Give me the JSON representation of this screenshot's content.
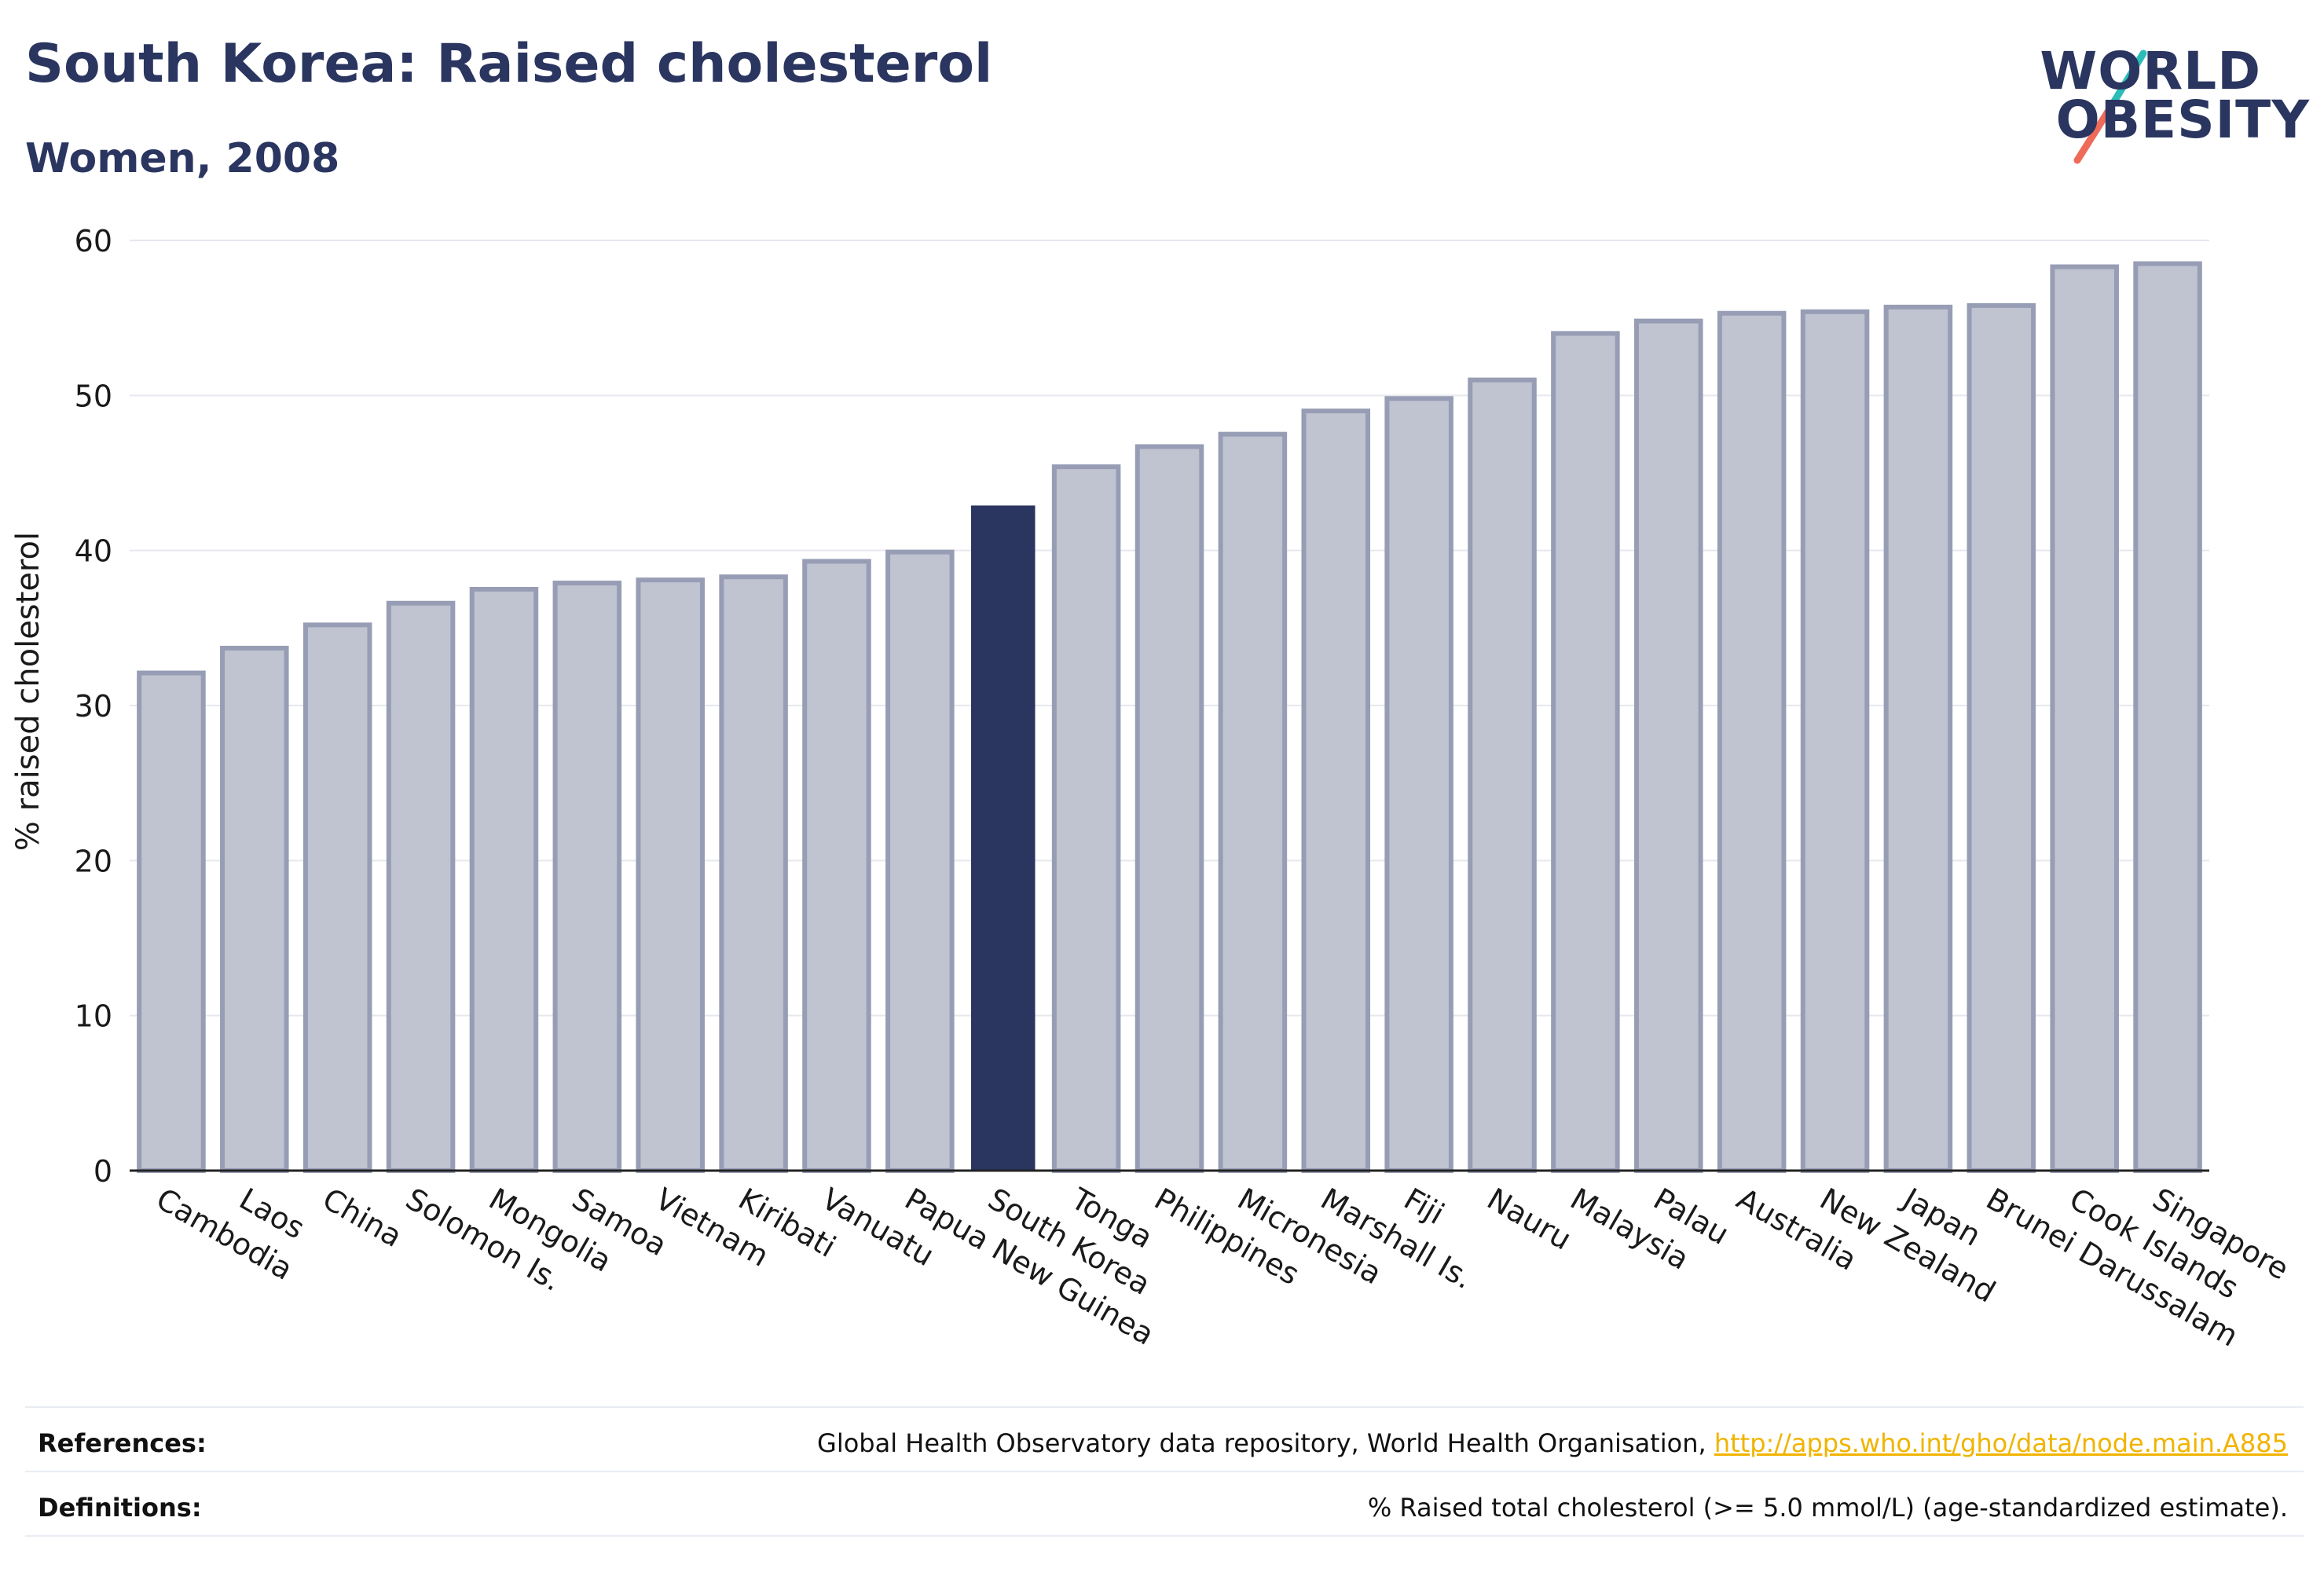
{
  "header": {
    "title": "South Korea: Raised cholesterol",
    "subtitle": "Women, 2008"
  },
  "logo": {
    "line1": "WORLD",
    "line2": "OBESITY",
    "accent_teal": "#2bbdb8",
    "accent_coral": "#ee6b5a"
  },
  "colors": {
    "bar_default": "#c0c3d0",
    "bar_default_border": "#979db4",
    "bar_highlight": "#2a3560",
    "grid": "#e6e8ee",
    "axis": "#222222"
  },
  "chart_data": {
    "type": "bar",
    "title": "South Korea: Raised cholesterol",
    "subtitle": "Women, 2008",
    "xlabel": "",
    "ylabel": "% raised cholesterol",
    "ylim": [
      0,
      60
    ],
    "yticks": [
      0,
      10,
      20,
      30,
      40,
      50,
      60
    ],
    "grid": true,
    "highlight": "South Korea",
    "categories": [
      "Cambodia",
      "Laos",
      "China",
      "Solomon Is.",
      "Mongolia",
      "Samoa",
      "Vietnam",
      "Kiribati",
      "Vanuatu",
      "Papua New Guinea",
      "South Korea",
      "Tonga",
      "Philippines",
      "Micronesia",
      "Marshall Is.",
      "Fiji",
      "Nauru",
      "Malaysia",
      "Palau",
      "Australia",
      "New Zealand",
      "Japan",
      "Brunei Darussalam",
      "Cook Islands",
      "Singapore"
    ],
    "values": [
      32.1,
      33.7,
      35.2,
      36.6,
      37.5,
      37.9,
      38.1,
      38.3,
      39.3,
      39.9,
      42.9,
      45.4,
      46.7,
      47.5,
      49.0,
      49.8,
      51.0,
      54.0,
      54.8,
      55.3,
      55.4,
      55.7,
      55.8,
      58.3,
      58.5
    ]
  },
  "footer": {
    "references_label": "References:",
    "references_text": "Global Health Observatory data repository, World Health Organisation, ",
    "references_link": "http://apps.who.int/gho/data/node.main.A885",
    "definitions_label": "Definitions:",
    "definitions_text": "% Raised total cholesterol (>= 5.0 mmol/L) (age-standardized estimate)."
  }
}
